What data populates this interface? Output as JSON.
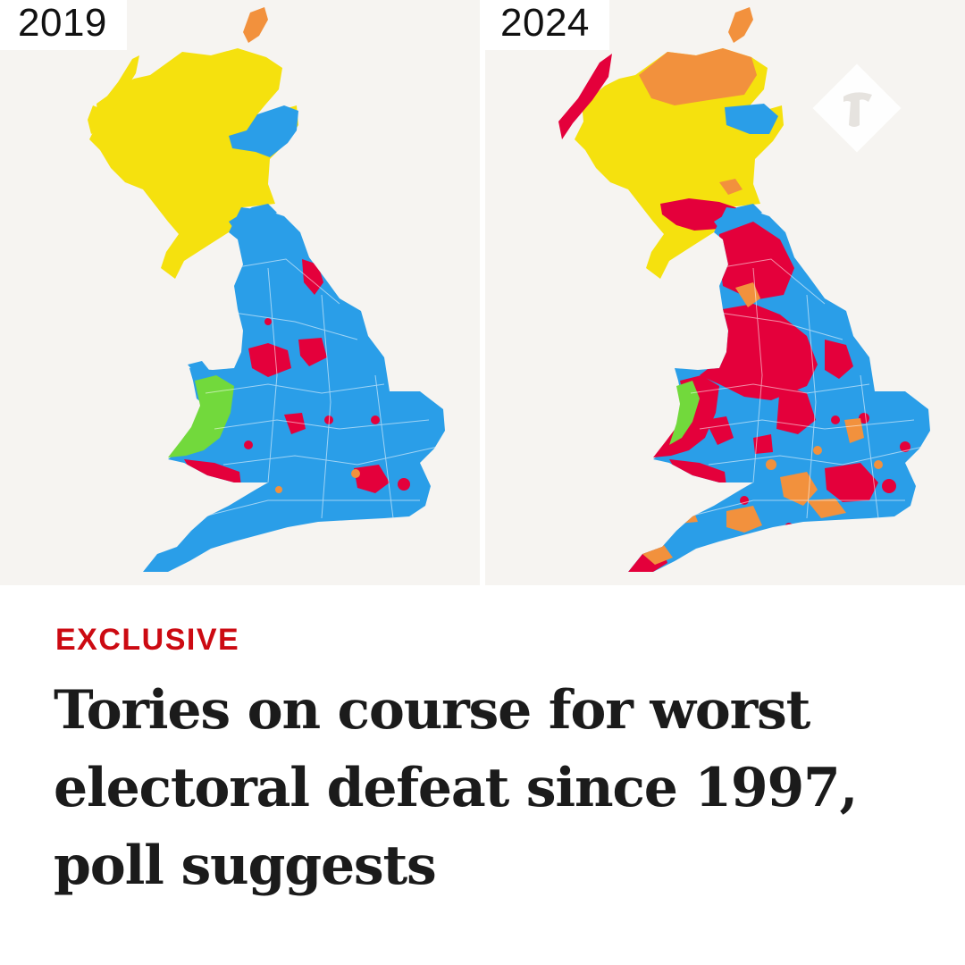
{
  "maps": {
    "left": {
      "year": "2019"
    },
    "right": {
      "year": "2024"
    }
  },
  "party_colors": {
    "conservative": "#2a9ee8",
    "labour": "#e4003b",
    "snp": "#f5e10e",
    "lib_dem": "#f2913d",
    "plaid_cymru": "#72d93c"
  },
  "article": {
    "kicker": "EXCLUSIVE",
    "headline": "Tories on course for worst electoral defeat since 1997, poll suggests"
  },
  "logo": {
    "name": "telegraph-t-logo"
  }
}
